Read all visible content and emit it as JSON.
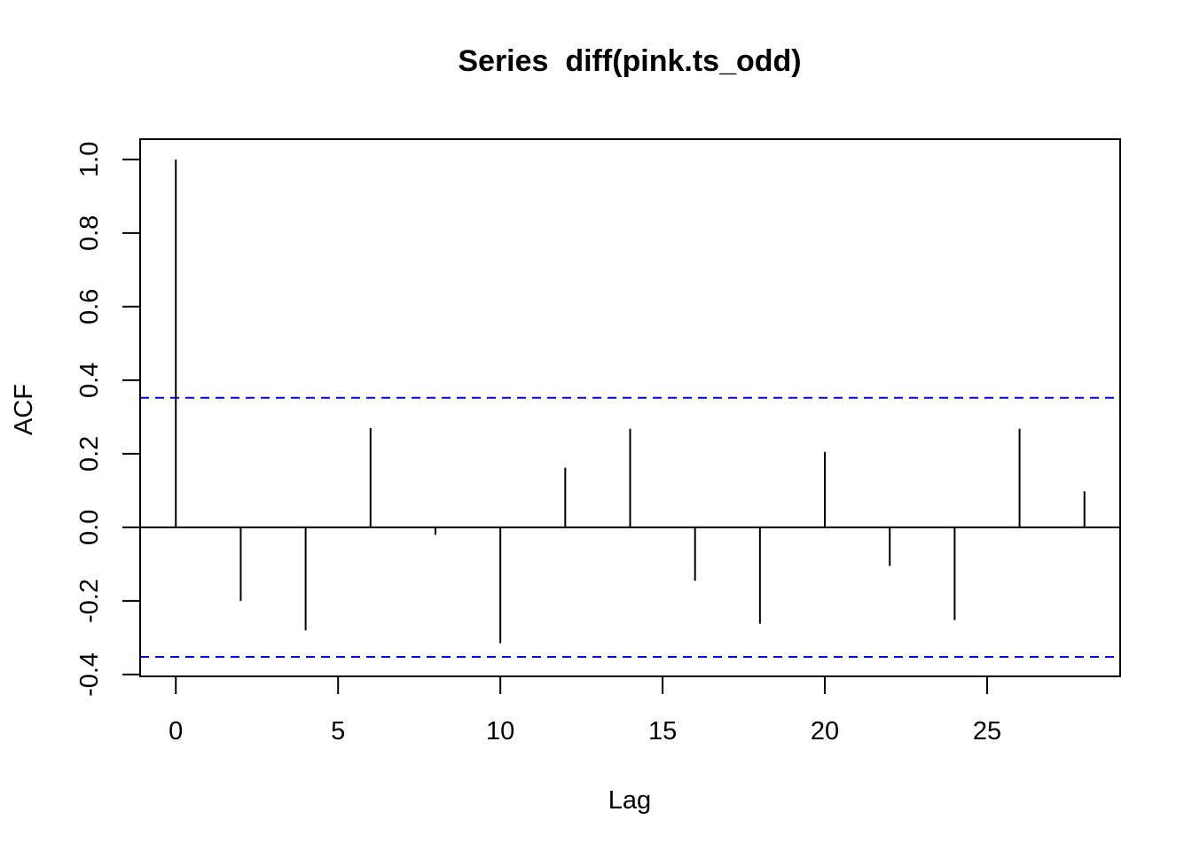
{
  "chart_data": {
    "type": "bar",
    "title": "Series  diff(pink.ts_odd)",
    "xlabel": "Lag",
    "ylabel": "ACF",
    "xlim": [
      -1.1,
      29.1
    ],
    "ylim": [
      -0.405,
      1.055
    ],
    "x_ticks": [
      0,
      5,
      10,
      15,
      20,
      25
    ],
    "y_ticks": [
      -0.4,
      -0.2,
      0.0,
      0.2,
      0.4,
      0.6,
      0.8,
      1.0
    ],
    "x_tick_labels": [
      "0",
      "5",
      "10",
      "15",
      "20",
      "25"
    ],
    "y_tick_labels": [
      "-0.4",
      "-0.2",
      "0.0",
      "0.2",
      "0.4",
      "0.6",
      "0.8",
      "1.0"
    ],
    "lags": [
      0,
      2,
      4,
      6,
      8,
      10,
      12,
      14,
      16,
      18,
      20,
      22,
      24,
      26,
      28
    ],
    "values": [
      1.0,
      -0.2,
      -0.28,
      0.27,
      -0.02,
      -0.315,
      0.162,
      0.268,
      -0.145,
      -0.262,
      0.205,
      -0.105,
      -0.252,
      0.268,
      0.098
    ],
    "ci_upper": 0.352,
    "ci_lower": -0.352,
    "ci_color": "#0000ee",
    "spike_color": "#000000",
    "grid": false,
    "legend": "none"
  }
}
